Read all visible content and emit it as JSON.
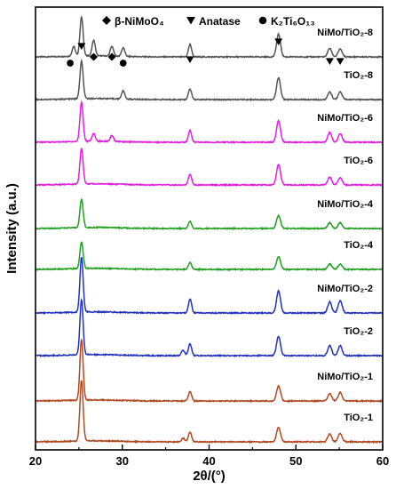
{
  "chart_data": {
    "type": "line",
    "title": "",
    "xlabel": "2θ/(°)",
    "ylabel": "Intensity (a.u.)",
    "xlim": [
      20,
      60
    ],
    "xticks": [
      20,
      30,
      40,
      50,
      60
    ],
    "grid": false,
    "legend": {
      "placement": "top",
      "entries": [
        {
          "marker": "diamond",
          "label": "β-NiMoO₄"
        },
        {
          "marker": "triangle-down",
          "label": "Anatase"
        },
        {
          "marker": "circle",
          "label": "K₂Ti₆O₁₃"
        }
      ]
    },
    "peak_markers": [
      {
        "marker": "circle",
        "x": 24.0
      },
      {
        "marker": "triangle-down",
        "x": 25.3
      },
      {
        "marker": "diamond",
        "x": 26.7
      },
      {
        "marker": "diamond",
        "x": 28.8
      },
      {
        "marker": "circle",
        "x": 30.1
      },
      {
        "marker": "triangle-down",
        "x": 37.8
      },
      {
        "marker": "triangle-down",
        "x": 48.0
      },
      {
        "marker": "triangle-down",
        "x": 53.9
      },
      {
        "marker": "triangle-down",
        "x": 55.1
      }
    ],
    "series": [
      {
        "name": "NiMo/TiO₂-8",
        "color": "#555555",
        "peaks": [
          [
            24.4,
            0.25
          ],
          [
            25.3,
            1.0
          ],
          [
            26.7,
            0.4
          ],
          [
            28.8,
            0.25
          ],
          [
            30.1,
            0.22
          ],
          [
            37.8,
            0.32
          ],
          [
            48.0,
            0.58
          ],
          [
            53.9,
            0.22
          ],
          [
            55.1,
            0.2
          ]
        ]
      },
      {
        "name": "TiO₂-8",
        "color": "#555555",
        "peaks": [
          [
            25.3,
            1.0
          ],
          [
            30.1,
            0.22
          ],
          [
            37.8,
            0.28
          ],
          [
            48.0,
            0.58
          ],
          [
            53.9,
            0.2
          ],
          [
            55.1,
            0.2
          ]
        ]
      },
      {
        "name": "NiMo/TiO₂-6",
        "color": "#e020e0",
        "peaks": [
          [
            25.3,
            1.0
          ],
          [
            26.7,
            0.2
          ],
          [
            28.8,
            0.15
          ],
          [
            37.8,
            0.3
          ],
          [
            48.0,
            0.55
          ],
          [
            53.9,
            0.25
          ],
          [
            55.1,
            0.22
          ]
        ]
      },
      {
        "name": "TiO₂-6",
        "color": "#e020e0",
        "peaks": [
          [
            25.3,
            1.0
          ],
          [
            37.8,
            0.3
          ],
          [
            48.0,
            0.58
          ],
          [
            53.9,
            0.22
          ],
          [
            55.1,
            0.2
          ]
        ]
      },
      {
        "name": "NiMo/TiO₂-4",
        "color": "#22a022",
        "peaks": [
          [
            25.3,
            1.0
          ],
          [
            37.8,
            0.25
          ],
          [
            48.0,
            0.45
          ],
          [
            53.9,
            0.2
          ],
          [
            55.1,
            0.2
          ]
        ]
      },
      {
        "name": "TiO₂-4",
        "color": "#22a022",
        "peaks": [
          [
            25.3,
            1.0
          ],
          [
            37.8,
            0.25
          ],
          [
            48.0,
            0.48
          ],
          [
            53.9,
            0.2
          ],
          [
            55.1,
            0.2
          ]
        ]
      },
      {
        "name": "NiMo/TiO₂-2",
        "color": "#2233bb",
        "peaks": [
          [
            25.3,
            1.0
          ],
          [
            37.8,
            0.25
          ],
          [
            48.0,
            0.4
          ],
          [
            53.9,
            0.2
          ],
          [
            55.1,
            0.22
          ]
        ]
      },
      {
        "name": "TiO₂-2",
        "color": "#2233bb",
        "peaks": [
          [
            25.3,
            1.0
          ],
          [
            37.0,
            0.1
          ],
          [
            37.8,
            0.22
          ],
          [
            48.0,
            0.35
          ],
          [
            53.9,
            0.18
          ],
          [
            55.1,
            0.18
          ]
        ]
      },
      {
        "name": "NiMo/TiO₂-1",
        "color": "#b04a22",
        "peaks": [
          [
            25.3,
            1.0
          ],
          [
            37.8,
            0.16
          ],
          [
            48.0,
            0.25
          ],
          [
            53.9,
            0.12
          ],
          [
            55.1,
            0.14
          ]
        ]
      },
      {
        "name": "TiO₂-1",
        "color": "#b04a22",
        "peaks": [
          [
            25.3,
            1.0
          ],
          [
            37.0,
            0.06
          ],
          [
            37.8,
            0.16
          ],
          [
            48.0,
            0.24
          ],
          [
            53.9,
            0.13
          ],
          [
            55.1,
            0.14
          ]
        ]
      }
    ]
  }
}
